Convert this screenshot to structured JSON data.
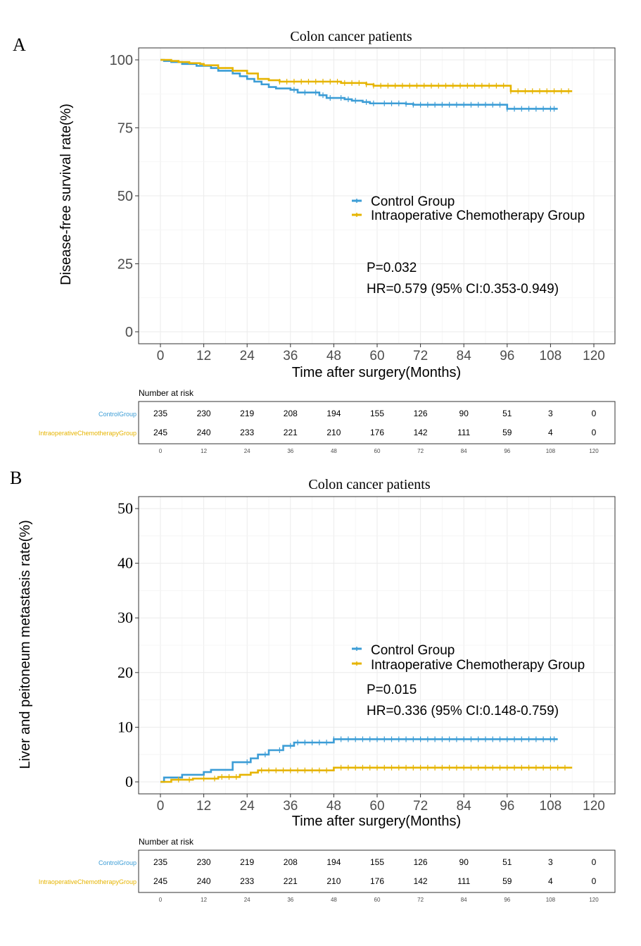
{
  "colors": {
    "control": "#3C9DD6",
    "chemo": "#E6B400",
    "grid": "#EBEBEB",
    "frame": "#333333",
    "tick_text": "#4D4D4D"
  },
  "chart_data": [
    {
      "type": "line",
      "panel": "A",
      "title": "Colon cancer patients",
      "xlabel": "Time after surgery(Months)",
      "ylabel": "Disease-free survival rate(%)",
      "xlim": [
        0,
        120
      ],
      "ylim": [
        0,
        100
      ],
      "x_ticks": [
        "0",
        "12",
        "24",
        "36",
        "48",
        "60",
        "72",
        "84",
        "96",
        "108",
        "120"
      ],
      "y_ticks": [
        "0",
        "25",
        "50",
        "75",
        "100"
      ],
      "grid": true,
      "legend_position": "right",
      "legend": [
        "Control Group",
        "Intraoperative Chemotherapy Group"
      ],
      "stats": [
        "P=0.032",
        "HR=0.579 (95% CI:0.353-0.949)"
      ],
      "series": [
        {
          "name": "Control Group",
          "color": "#3C9DD6",
          "points": [
            [
              0,
              100
            ],
            [
              1,
              99.6
            ],
            [
              3,
              99.2
            ],
            [
              6,
              98.5
            ],
            [
              10,
              97.8
            ],
            [
              14,
              97
            ],
            [
              16,
              96
            ],
            [
              20,
              95
            ],
            [
              22,
              94
            ],
            [
              24,
              93
            ],
            [
              26,
              92
            ],
            [
              28,
              91
            ],
            [
              30,
              90
            ],
            [
              32,
              89.5
            ],
            [
              36,
              89
            ],
            [
              38,
              88
            ],
            [
              44,
              87
            ],
            [
              46,
              86
            ],
            [
              51,
              85.5
            ],
            [
              53,
              85
            ],
            [
              56,
              84.5
            ],
            [
              58,
              84
            ],
            [
              68,
              83.8
            ],
            [
              70,
              83.5
            ],
            [
              96,
              82
            ],
            [
              110,
              82
            ]
          ],
          "censor_x": [
            37,
            40,
            43,
            45,
            47,
            50,
            52,
            54,
            57,
            59,
            62,
            64,
            66,
            68,
            70,
            72,
            74,
            76,
            78,
            80,
            82,
            84,
            86,
            88,
            90,
            92,
            94,
            96,
            98,
            100,
            102,
            104,
            106,
            108,
            109
          ]
        },
        {
          "name": "Intraoperative Chemotherapy Group",
          "color": "#E6B400",
          "points": [
            [
              0,
              100
            ],
            [
              3,
              99.6
            ],
            [
              5,
              99.2
            ],
            [
              8,
              98.8
            ],
            [
              11,
              98.5
            ],
            [
              12,
              98
            ],
            [
              16,
              97
            ],
            [
              20,
              96
            ],
            [
              24,
              95
            ],
            [
              27,
              93
            ],
            [
              30,
              92.5
            ],
            [
              33,
              92
            ],
            [
              50,
              91.5
            ],
            [
              57,
              91
            ],
            [
              59,
              90.5
            ],
            [
              97,
              88.5
            ],
            [
              114,
              88.5
            ]
          ],
          "censor_x": [
            33,
            35,
            37,
            39,
            41,
            43,
            45,
            47,
            49,
            51,
            53,
            55,
            57,
            59,
            61,
            63,
            65,
            67,
            69,
            71,
            73,
            75,
            77,
            79,
            81,
            83,
            85,
            87,
            89,
            91,
            93,
            95,
            97,
            99,
            101,
            103,
            105,
            107,
            109,
            111,
            113
          ]
        }
      ],
      "risk_table": {
        "header": "Number at risk",
        "x": [
          "0",
          "12",
          "24",
          "36",
          "48",
          "60",
          "72",
          "84",
          "96",
          "108",
          "120"
        ],
        "rows": [
          {
            "label": "ControlGroup",
            "values": [
              "235",
              "230",
              "219",
              "208",
              "194",
              "155",
              "126",
              "90",
              "51",
              "3",
              "0"
            ]
          },
          {
            "label": "IntraoperativeChemotherapyGroup",
            "values": [
              "245",
              "240",
              "233",
              "221",
              "210",
              "176",
              "142",
              "111",
              "59",
              "4",
              "0"
            ]
          }
        ]
      }
    },
    {
      "type": "line",
      "panel": "B",
      "title": "Colon cancer patients",
      "xlabel": "Time after surgery(Months)",
      "ylabel": "Liver and peitoneum metastasis rate(%)",
      "xlim": [
        0,
        120
      ],
      "ylim": [
        0,
        50
      ],
      "x_ticks": [
        "0",
        "12",
        "24",
        "36",
        "48",
        "60",
        "72",
        "84",
        "96",
        "108",
        "120"
      ],
      "y_ticks": [
        "0",
        "10",
        "20",
        "30",
        "40",
        "50"
      ],
      "grid": true,
      "legend_position": "right",
      "legend": [
        "Control Group",
        "Intraoperative Chemotherapy Group"
      ],
      "stats": [
        "P=0.015",
        "HR=0.336 (95% CI:0.148-0.759)"
      ],
      "series": [
        {
          "name": "Control Group",
          "color": "#3C9DD6",
          "points": [
            [
              0,
              0
            ],
            [
              1,
              0.8
            ],
            [
              6,
              1.3
            ],
            [
              12,
              1.8
            ],
            [
              14,
              2.2
            ],
            [
              20,
              3.6
            ],
            [
              25,
              4.3
            ],
            [
              27,
              5
            ],
            [
              30,
              5.8
            ],
            [
              34,
              6.6
            ],
            [
              37,
              7.2
            ],
            [
              48,
              7.8
            ],
            [
              110,
              7.8
            ]
          ],
          "censor_x": [
            24,
            29,
            33,
            36,
            38,
            40,
            42,
            44,
            46,
            48,
            50,
            52,
            54,
            56,
            58,
            60,
            62,
            64,
            66,
            68,
            70,
            72,
            74,
            76,
            78,
            80,
            82,
            84,
            86,
            88,
            90,
            92,
            94,
            96,
            98,
            100,
            102,
            104,
            106,
            108,
            109
          ]
        },
        {
          "name": "Intraoperative Chemotherapy Group",
          "color": "#E6B400",
          "points": [
            [
              0,
              0
            ],
            [
              3,
              0.4
            ],
            [
              9,
              0.6
            ],
            [
              16,
              0.9
            ],
            [
              22,
              1.3
            ],
            [
              25,
              1.7
            ],
            [
              27,
              2.1
            ],
            [
              48,
              2.6
            ],
            [
              114,
              2.6
            ]
          ],
          "censor_x": [
            5,
            8,
            12,
            15,
            17,
            19,
            21,
            28,
            30,
            32,
            34,
            36,
            38,
            40,
            42,
            44,
            46,
            50,
            52,
            54,
            56,
            58,
            60,
            62,
            64,
            66,
            68,
            70,
            72,
            74,
            76,
            78,
            80,
            82,
            84,
            86,
            88,
            90,
            92,
            94,
            96,
            98,
            100,
            102,
            104,
            106,
            108,
            110,
            112
          ]
        }
      ],
      "risk_table": {
        "header": "Number at risk",
        "x": [
          "0",
          "12",
          "24",
          "36",
          "48",
          "60",
          "72",
          "84",
          "96",
          "108",
          "120"
        ],
        "rows": [
          {
            "label": "ControlGroup",
            "values": [
              "235",
              "230",
              "219",
              "208",
              "194",
              "155",
              "126",
              "90",
              "51",
              "3",
              "0"
            ]
          },
          {
            "label": "IntraoperativeChemotherapyGroup",
            "values": [
              "245",
              "240",
              "233",
              "221",
              "210",
              "176",
              "142",
              "111",
              "59",
              "4",
              "0"
            ]
          }
        ]
      }
    }
  ]
}
